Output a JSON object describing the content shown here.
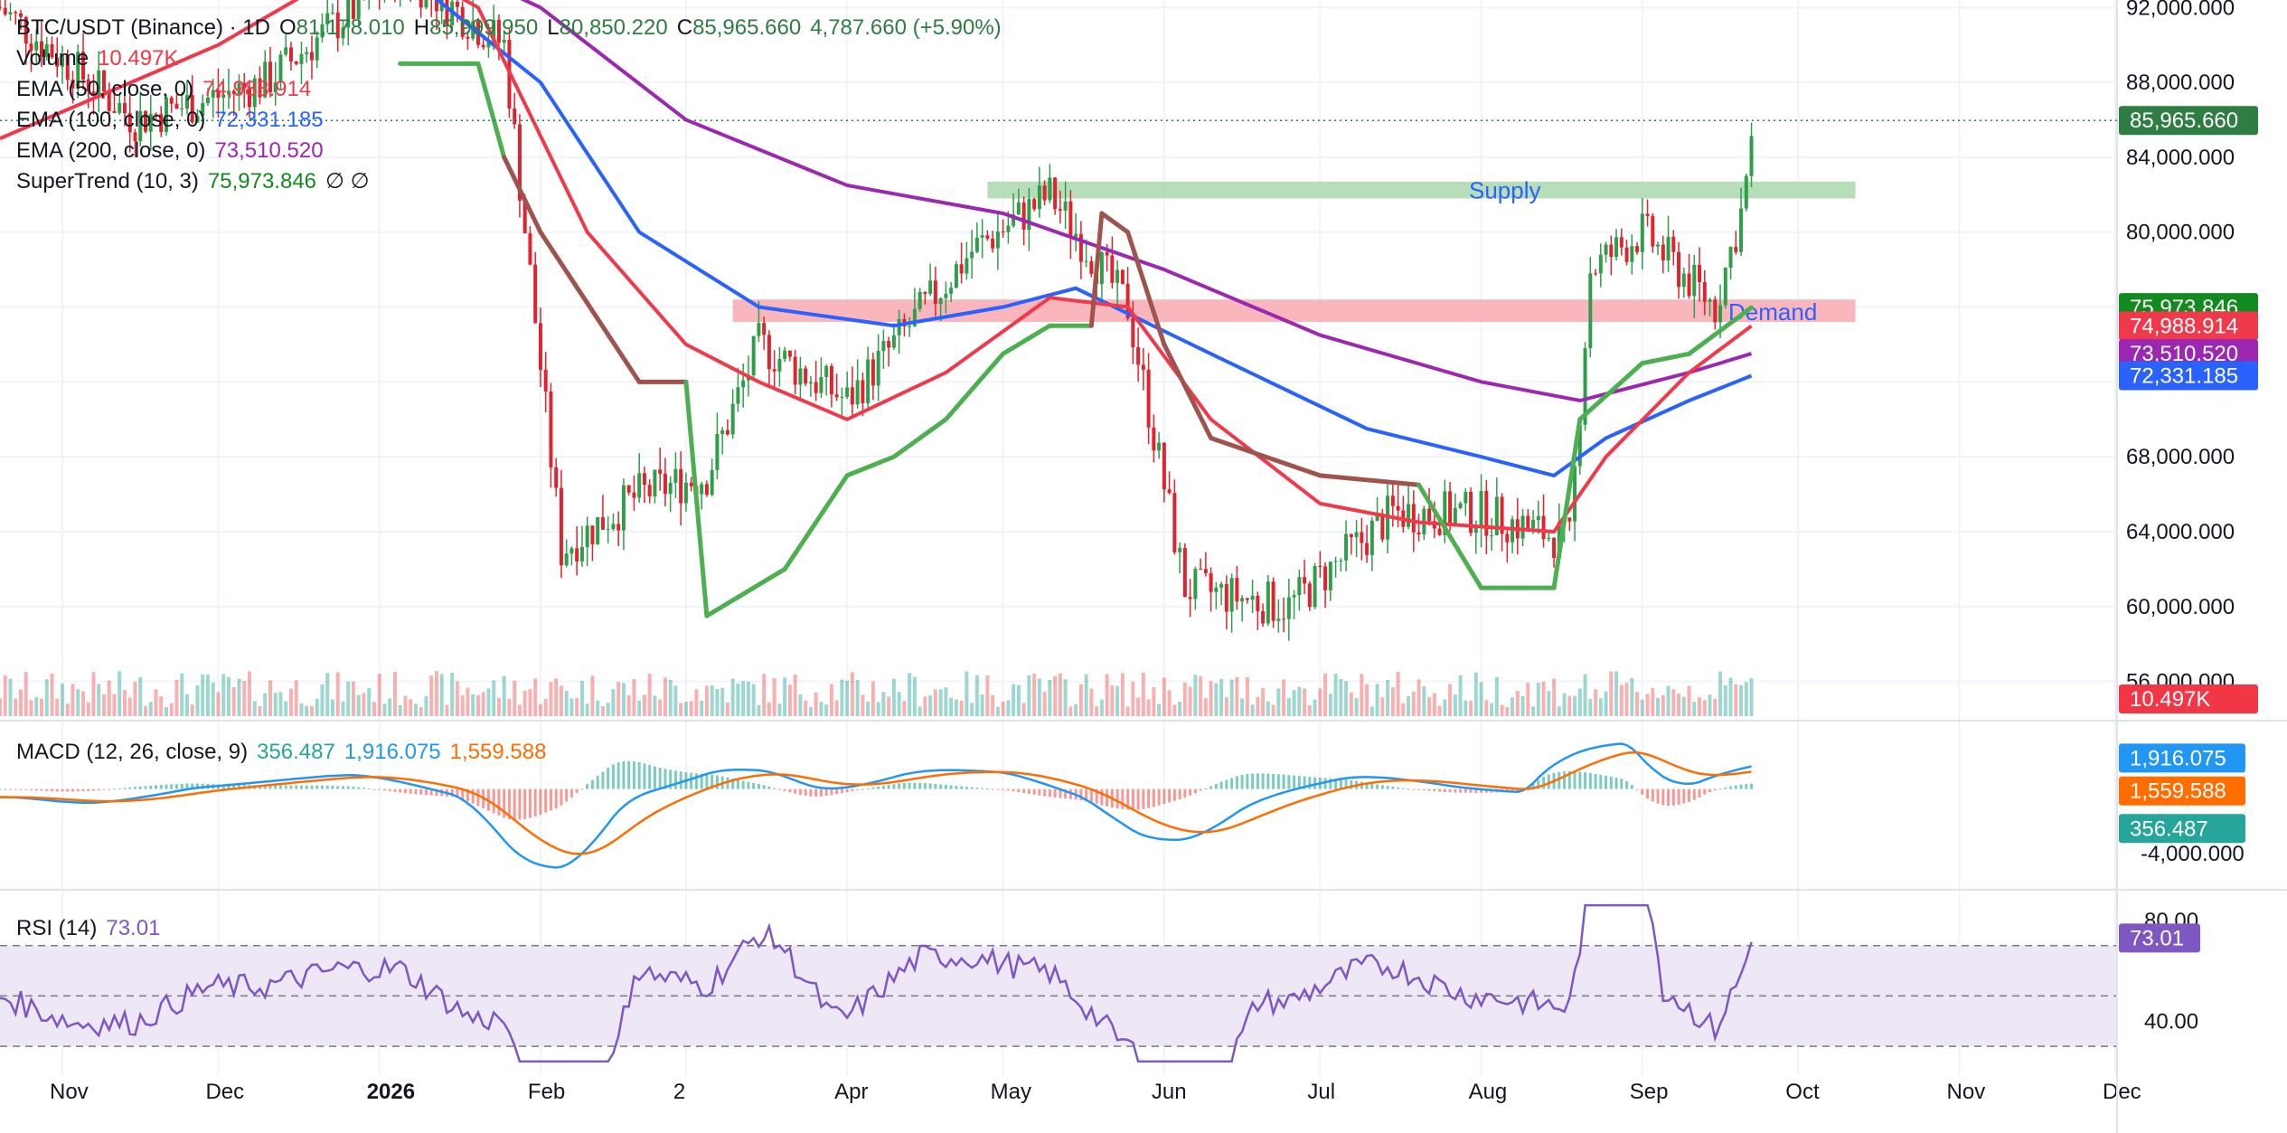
{
  "header": {
    "symbol": "BTC/USDT (Binance) · 1D",
    "open_label": "O",
    "open": "81,178.010",
    "high_label": "H",
    "high": "85,999.950",
    "low_label": "L",
    "low": "80,850.220",
    "close_label": "C",
    "close": "85,965.660",
    "change": "4,787.660 (+5.90%)"
  },
  "legend": {
    "volume_label": "Volume",
    "volume_value": "10.497K",
    "ema50_label": "EMA (50, close, 0)",
    "ema50_value": "74,988.914",
    "ema100_label": "EMA (100, close, 0)",
    "ema100_value": "72,331.185",
    "ema200_label": "EMA (200, close, 0)",
    "ema200_value": "73,510.520",
    "supertrend_label": "SuperTrend (10, 3)",
    "supertrend_value": "75,973.846",
    "supertrend_extra": "∅  ∅",
    "macd_label": "MACD (12, 26, close, 9)",
    "macd_hist": "356.487",
    "macd_line": "1,916.075",
    "macd_signal": "1,559.588",
    "rsi_label": "RSI (14)",
    "rsi_value": "73.01"
  },
  "zones": {
    "supply_label": "Supply",
    "demand_label": "Demand"
  },
  "price_axis_labels": [
    "92,000.000",
    "88,000.000",
    "84,000.000",
    "80,000.000",
    "68,000.000",
    "64,000.000",
    "60,000.000",
    "56,000.000"
  ],
  "price_tags": [
    {
      "text": "85,965.660",
      "color": "#2e7d43"
    },
    {
      "text": "75,973.846",
      "color": "#138a20"
    },
    {
      "text": "74,988.914",
      "color": "#f0394a"
    },
    {
      "text": "73,510.520",
      "color": "#9c27b0"
    },
    {
      "text": "72,331.185",
      "color": "#2962ff"
    },
    {
      "text": "10.497K",
      "color": "#f23645"
    }
  ],
  "macd_axis_label": "-4,000.000",
  "macd_tags": [
    {
      "text": "1,916.075",
      "color": "#2196f3"
    },
    {
      "text": "1,559.588",
      "color": "#ff6d00"
    },
    {
      "text": "356.487",
      "color": "#26a69a"
    }
  ],
  "rsi_axis_labels": [
    "80.00",
    "40.00"
  ],
  "rsi_tag": {
    "text": "73.01",
    "color": "#7e57c2"
  },
  "time_axis_labels": [
    "Nov",
    "Dec",
    "2026",
    "Feb",
    "2",
    "Apr",
    "May",
    "Jun",
    "Jul",
    "Aug",
    "Sep",
    "Oct",
    "Nov",
    "Dec"
  ],
  "colors": {
    "up": "#26a69a",
    "down": "#ef5350",
    "candle_up": "#2e9e4a",
    "candle_down": "#e0232f",
    "ema50": "#f0394a",
    "ema100": "#2962ff",
    "ema200": "#9c27b0",
    "supertrend_up": "#4caf50",
    "supertrend_down": "#a0524d",
    "supply_zone": "#a5d6a7",
    "demand_zone": "#f8a5ad",
    "zone_text": "#2962ff",
    "macd_line": "#2196f3",
    "signal_line": "#ff6d00",
    "rsi_line": "#7e57c2",
    "rsi_band": "#ede7f6"
  },
  "chart_data": {
    "type": "candlestick",
    "title": "BTC/USDT (Binance) · 1D",
    "x_range": [
      "2025-10-20",
      "2026-12-01"
    ],
    "y_range_price": [
      54000,
      92400
    ],
    "supply_zone": [
      81800,
      82700
    ],
    "demand_zone": [
      75200,
      76400
    ],
    "ema50": {
      "x": [
        "2025-10-20",
        "2025-12-01",
        "2026-01-01",
        "2026-01-20",
        "2026-02-10",
        "2026-03-01",
        "2026-03-15",
        "2026-04-01",
        "2026-04-20",
        "2026-05-10",
        "2026-05-25",
        "2026-06-10",
        "2026-07-01",
        "2026-07-20",
        "2026-08-15",
        "2026-08-25",
        "2026-09-10",
        "2026-09-22"
      ],
      "y": [
        85000,
        90000,
        95000,
        92000,
        80000,
        74000,
        72000,
        70000,
        72500,
        76500,
        76000,
        70000,
        65500,
        64500,
        64000,
        68000,
        72500,
        74989
      ]
    },
    "ema100": {
      "x": [
        "2025-10-20",
        "2025-12-01",
        "2026-01-05",
        "2026-02-01",
        "2026-02-20",
        "2026-03-15",
        "2026-04-10",
        "2026-05-01",
        "2026-05-15",
        "2026-06-10",
        "2026-07-10",
        "2026-08-01",
        "2026-08-15",
        "2026-08-25",
        "2026-09-10",
        "2026-09-22"
      ],
      "y": [
        95000,
        96000,
        94000,
        88000,
        80000,
        76000,
        75000,
        76000,
        77000,
        73500,
        69500,
        68000,
        67000,
        69000,
        71000,
        72331
      ]
    },
    "ema200": {
      "x": [
        "2025-10-20",
        "2026-01-01",
        "2026-02-01",
        "2026-03-01",
        "2026-04-01",
        "2026-05-01",
        "2026-06-01",
        "2026-07-01",
        "2026-08-01",
        "2026-08-20",
        "2026-09-10",
        "2026-09-22"
      ],
      "y": [
        98000,
        96000,
        92000,
        86000,
        82500,
        81000,
        78000,
        74500,
        72000,
        71000,
        72500,
        73511
      ]
    },
    "supertrend": {
      "x": [
        "2026-01-05",
        "2026-01-20",
        "2026-01-25",
        "2026-02-01",
        "2026-02-20",
        "2026-03-01",
        "2026-03-05",
        "2026-03-20",
        "2026-04-01",
        "2026-04-10",
        "2026-04-20",
        "2026-05-01",
        "2026-05-10",
        "2026-05-18",
        "2026-05-20",
        "2026-05-25",
        "2026-06-01",
        "2026-06-10",
        "2026-07-01",
        "2026-07-20",
        "2026-08-01",
        "2026-08-15",
        "2026-08-20",
        "2026-09-01",
        "2026-09-10",
        "2026-09-22"
      ],
      "y": [
        89000,
        89000,
        84000,
        80000,
        72000,
        72000,
        59500,
        62000,
        67000,
        68000,
        70000,
        73500,
        75000,
        75000,
        81000,
        80000,
        74000,
        69000,
        67000,
        66500,
        61000,
        61000,
        70000,
        73000,
        73500,
        75974
      ]
    },
    "volume_last": 10497,
    "macd": {
      "line": 1916.075,
      "signal": 1559.588,
      "histogram": 356.487,
      "y_range": [
        -6000,
        3500
      ]
    },
    "rsi": {
      "value": 73.01,
      "upper": 70,
      "middle": 50,
      "lower": 30,
      "y_range": [
        20,
        90
      ]
    }
  }
}
